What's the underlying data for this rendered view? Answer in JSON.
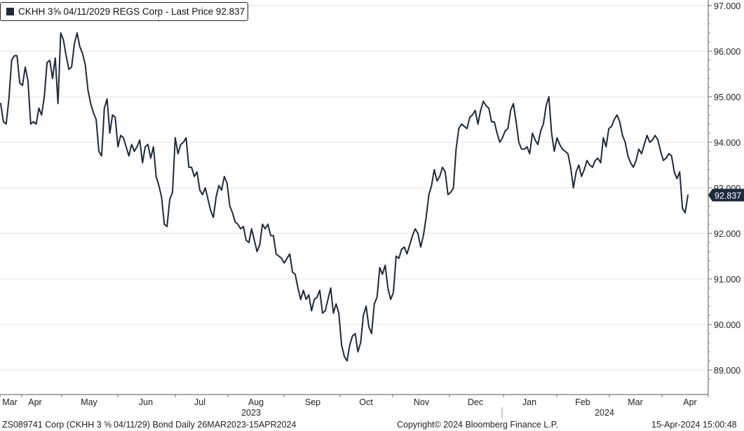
{
  "legend": {
    "text": "CKHH 3⅝ 04/11/2029 REGS Corp - Last Price 92.837",
    "color": "#1c2b3d"
  },
  "footer": {
    "left": "ZS089741 Corp (CKHH 3 ⅝ 04/11/29) Bond  Daily 26MAR2023-15APR2024",
    "center": "Copyright© 2024 Bloomberg Finance L.P.",
    "right": "15-Apr-2024 15:00:48"
  },
  "chart_data": {
    "type": "line",
    "series": [
      {
        "name": "CKHH 3⅝ 04/11/2029 REGS Corp - Last Price",
        "color": "#1c2b3d",
        "last_value_label": "92.837",
        "values": [
          94.85,
          94.45,
          94.4,
          94.95,
          95.8,
          95.9,
          95.9,
          95.3,
          95.25,
          95.65,
          95.35,
          94.4,
          94.45,
          94.4,
          94.75,
          94.6,
          95.0,
          95.75,
          95.8,
          95.4,
          95.85,
          94.85,
          96.4,
          96.25,
          95.9,
          95.6,
          95.65,
          96.15,
          96.4,
          96.1,
          95.95,
          95.7,
          95.15,
          94.85,
          94.65,
          94.5,
          93.8,
          93.7,
          94.75,
          94.95,
          94.2,
          94.6,
          94.55,
          93.9,
          94.15,
          94.1,
          93.9,
          93.7,
          93.95,
          93.8,
          93.9,
          94.05,
          93.55,
          93.9,
          93.95,
          93.65,
          93.9,
          93.25,
          93.05,
          92.8,
          92.2,
          92.15,
          92.75,
          92.9,
          94.1,
          93.75,
          93.95,
          94.0,
          94.1,
          93.45,
          93.45,
          93.25,
          93.35,
          92.95,
          92.85,
          93.0,
          92.75,
          92.5,
          92.35,
          92.8,
          93.05,
          92.95,
          93.25,
          93.1,
          92.6,
          92.45,
          92.25,
          92.2,
          92.1,
          92.15,
          91.85,
          91.8,
          92.1,
          91.85,
          91.6,
          91.75,
          92.2,
          92.1,
          92.2,
          91.95,
          91.95,
          91.55,
          91.5,
          91.45,
          91.35,
          91.45,
          91.55,
          91.15,
          91.1,
          90.8,
          90.55,
          90.75,
          90.55,
          90.65,
          90.3,
          90.55,
          90.6,
          90.75,
          90.25,
          90.3,
          90.55,
          90.8,
          90.25,
          90.45,
          90.25,
          89.55,
          89.3,
          89.2,
          89.55,
          89.75,
          89.8,
          89.4,
          89.6,
          90.2,
          90.4,
          89.95,
          89.8,
          90.45,
          90.6,
          91.25,
          91.1,
          91.3,
          90.8,
          90.55,
          90.7,
          91.5,
          91.45,
          91.65,
          91.7,
          91.55,
          91.75,
          91.95,
          92.1,
          92.0,
          91.7,
          91.95,
          92.35,
          92.85,
          93.05,
          93.4,
          93.15,
          93.25,
          93.45,
          93.35,
          92.85,
          92.9,
          93.0,
          93.85,
          94.3,
          94.4,
          94.35,
          94.3,
          94.55,
          94.6,
          94.7,
          94.4,
          94.7,
          94.9,
          94.8,
          94.75,
          94.45,
          94.45,
          94.2,
          94.0,
          94.1,
          94.25,
          94.3,
          94.7,
          94.85,
          94.45,
          94.0,
          93.85,
          93.85,
          93.9,
          93.75,
          94.2,
          94.05,
          93.95,
          94.25,
          94.4,
          94.8,
          95.0,
          94.2,
          93.8,
          94.1,
          93.95,
          93.85,
          93.8,
          93.75,
          93.45,
          93.0,
          93.35,
          93.5,
          93.25,
          93.4,
          93.6,
          93.5,
          93.45,
          93.6,
          93.65,
          93.55,
          94.1,
          93.9,
          94.3,
          94.35,
          94.5,
          94.6,
          94.45,
          94.15,
          94.0,
          93.7,
          93.55,
          93.45,
          93.6,
          93.85,
          93.75,
          93.95,
          94.15,
          94.0,
          94.05,
          94.15,
          94.05,
          93.8,
          93.6,
          93.65,
          93.75,
          93.7,
          93.35,
          93.2,
          93.35,
          92.55,
          92.45,
          92.84
        ]
      }
    ],
    "ylim": [
      88.8,
      97.0
    ],
    "yticks": [
      89.0,
      90.0,
      91.0,
      92.0,
      93.0,
      94.0,
      95.0,
      96.0,
      97.0
    ],
    "ytick_labels": [
      "89.000",
      "90.000",
      "91.000",
      "92.000",
      "93.000",
      "94.000",
      "95.000",
      "96.000",
      "97.000"
    ],
    "xaxis": {
      "months": [
        "Mar",
        "Apr",
        "May",
        "Jun",
        "Jul",
        "Aug",
        "Sep",
        "Oct",
        "Nov",
        "Dec",
        "Jan",
        "Feb",
        "Mar",
        "Apr"
      ],
      "years": [
        "2023",
        "2024"
      ]
    },
    "grid": true,
    "legend_position": "top-left",
    "axis_position": "right"
  }
}
